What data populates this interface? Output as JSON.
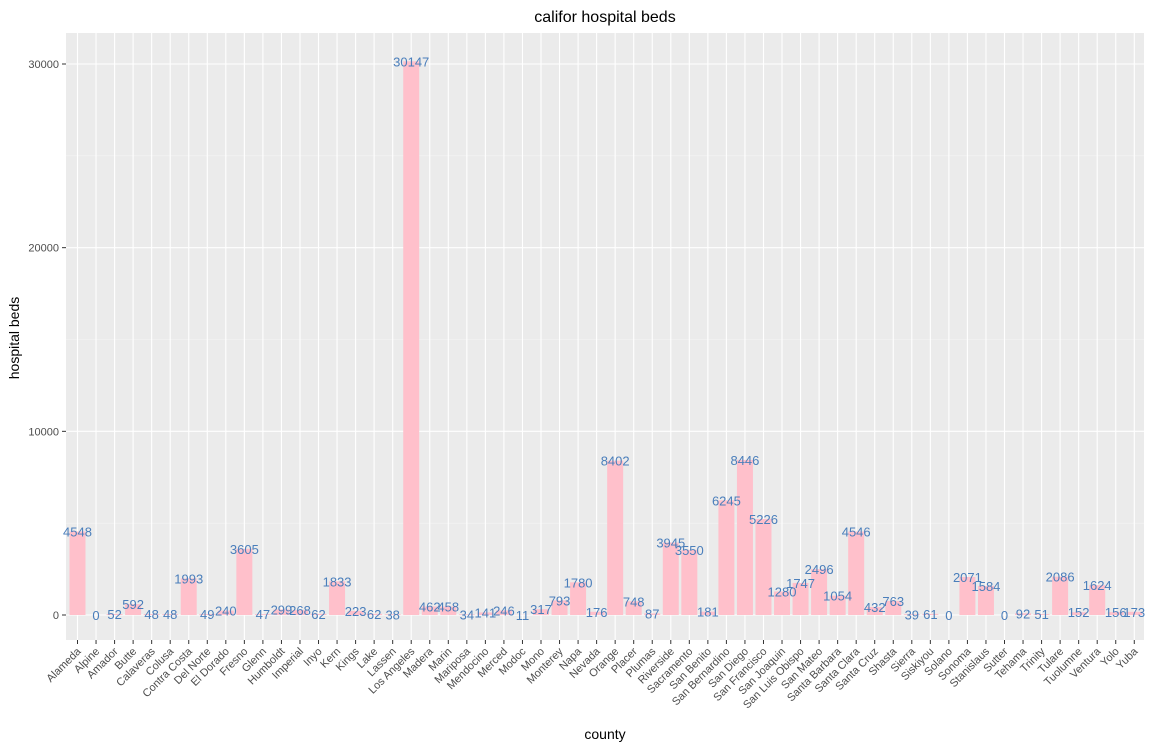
{
  "chart_data": {
    "type": "bar",
    "title": "califor hospital beds",
    "xlabel": "county",
    "ylabel": "hospital beds",
    "ylim": [
      0,
      32000
    ],
    "yticks": [
      "0",
      "10000",
      "20000",
      "30000"
    ],
    "grid": true,
    "colors": {
      "bar": "#ffc0cb",
      "label": "#4a7ebb",
      "panel": "#ebebeb",
      "grid": "#ffffff"
    },
    "categories": [
      "Alameda",
      "Alpine",
      "Amador",
      "Butte",
      "Calaveras",
      "Colusa",
      "Contra Costa",
      "Del Norte",
      "El Dorado",
      "Fresno",
      "Glenn",
      "Humboldt",
      "Imperial",
      "Inyo",
      "Kern",
      "Kings",
      "Lake",
      "Lassen",
      "Los Angeles",
      "Madera",
      "Marin",
      "Mariposa",
      "Mendocino",
      "Merced",
      "Modoc",
      "Mono",
      "Monterey",
      "Napa",
      "Nevada",
      "Orange",
      "Placer",
      "Plumas",
      "Riverside",
      "Sacramento",
      "San Benito",
      "San Bernardino",
      "San Diego",
      "San Francisco",
      "San Joaquin",
      "San Luis Obispo",
      "San Mateo",
      "Santa Barbara",
      "Santa Clara",
      "Santa Cruz",
      "Shasta",
      "Sierra",
      "Siskiyou",
      "Solano",
      "Sonoma",
      "Stanislaus",
      "Sutter",
      "Tehama",
      "Trinity",
      "Tulare",
      "Tuolumne",
      "Ventura",
      "Yolo",
      "Yuba"
    ],
    "values": [
      4548,
      0,
      52,
      592,
      48,
      48,
      1993,
      49,
      240,
      3605,
      47,
      299,
      268,
      62,
      1833,
      223,
      62,
      38,
      30147,
      462,
      458,
      34,
      141,
      246,
      11,
      317,
      793,
      1780,
      176,
      8402,
      748,
      87,
      3945,
      3550,
      181,
      6245,
      8446,
      5226,
      1280,
      1747,
      2496,
      1054,
      4546,
      432,
      763,
      39,
      61,
      0,
      2071,
      1584,
      0,
      92,
      51,
      2086,
      152,
      1624,
      156,
      173
    ],
    "labels": [
      "4548",
      "0",
      "52",
      "592",
      "48",
      "48",
      "1993",
      "49",
      "240",
      "3605",
      "47",
      "299",
      "268",
      "62",
      "1833",
      "223",
      "62",
      "38",
      "30147",
      "462",
      "458",
      "34",
      "141",
      "246",
      "11",
      "317",
      "793",
      "1780",
      "176",
      "8402",
      "748",
      "87",
      "3945",
      "3550",
      "181",
      "6245",
      "8446",
      "5226",
      "1280",
      "1747",
      "2496",
      "1054",
      "4546",
      "432",
      "763",
      "39",
      "61",
      "0",
      "2071",
      "1584",
      "0",
      "92",
      "51",
      "2086",
      "152",
      "1624",
      "156",
      "173"
    ]
  }
}
